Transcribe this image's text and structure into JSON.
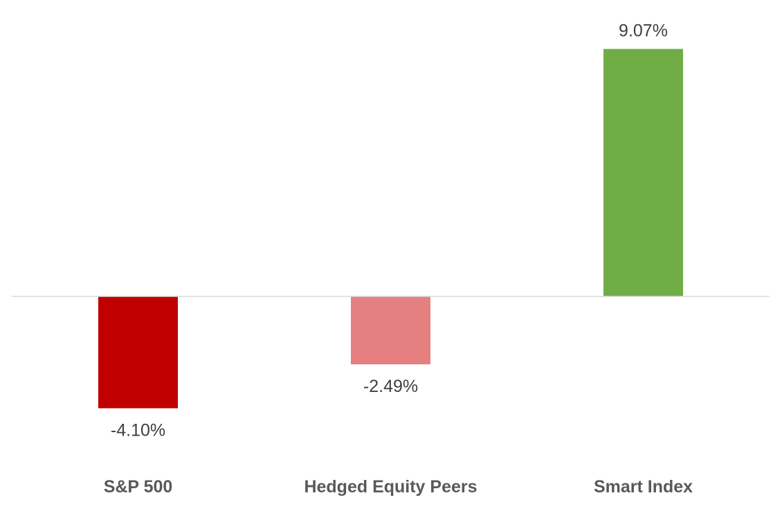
{
  "chart_data": {
    "type": "bar",
    "title": "",
    "xlabel": "",
    "ylabel": "",
    "categories": [
      "S&P 500",
      "Hedged Equity Peers",
      "Smart Index"
    ],
    "values": [
      -4.1,
      -2.49,
      9.07
    ],
    "value_labels": [
      "-4.10%",
      "-2.49%",
      "9.07%"
    ],
    "colors": [
      "#C00000",
      "#E68080",
      "#70AD47"
    ],
    "ylim": [
      -5.5,
      10
    ],
    "grid": false,
    "legend": "none",
    "axis_line_color": "#D9D9D9"
  }
}
